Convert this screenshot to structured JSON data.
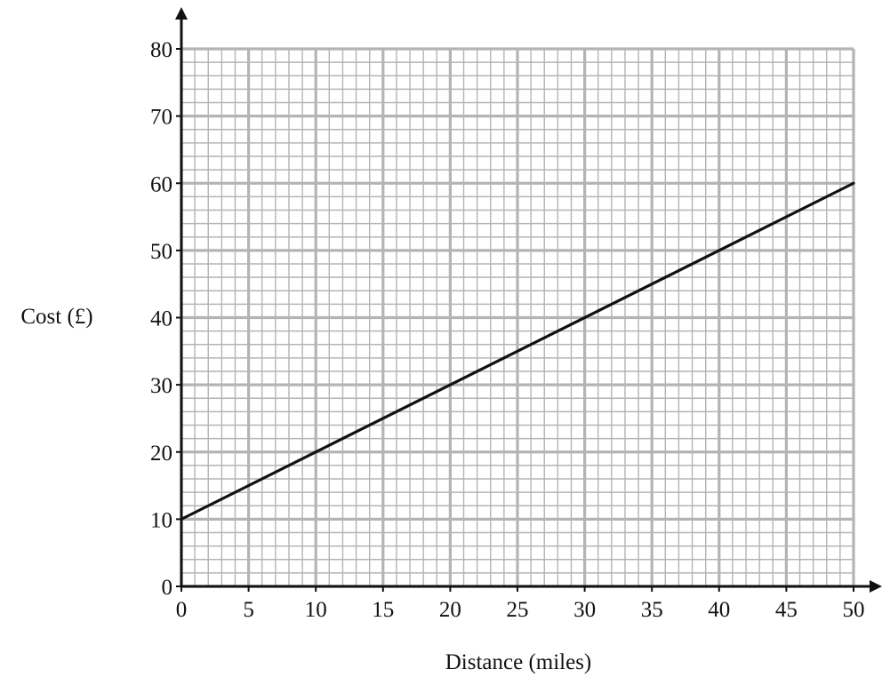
{
  "chart_data": {
    "type": "line",
    "title": "",
    "xlabel": "Distance (miles)",
    "ylabel": "Cost (£)",
    "xlim": [
      0,
      50
    ],
    "ylim": [
      0,
      80
    ],
    "x_ticks": [
      0,
      5,
      10,
      15,
      20,
      25,
      30,
      35,
      40,
      45,
      50
    ],
    "y_ticks": [
      0,
      10,
      20,
      30,
      40,
      50,
      60,
      70,
      80
    ],
    "x_minor_step": 1,
    "y_minor_step": 2,
    "grid": true,
    "series": [
      {
        "x": [
          0,
          50
        ],
        "y": [
          10,
          60
        ]
      }
    ],
    "colors": {
      "grid": "#b4b4b4",
      "axis": "#111111",
      "line": "#111111"
    }
  }
}
